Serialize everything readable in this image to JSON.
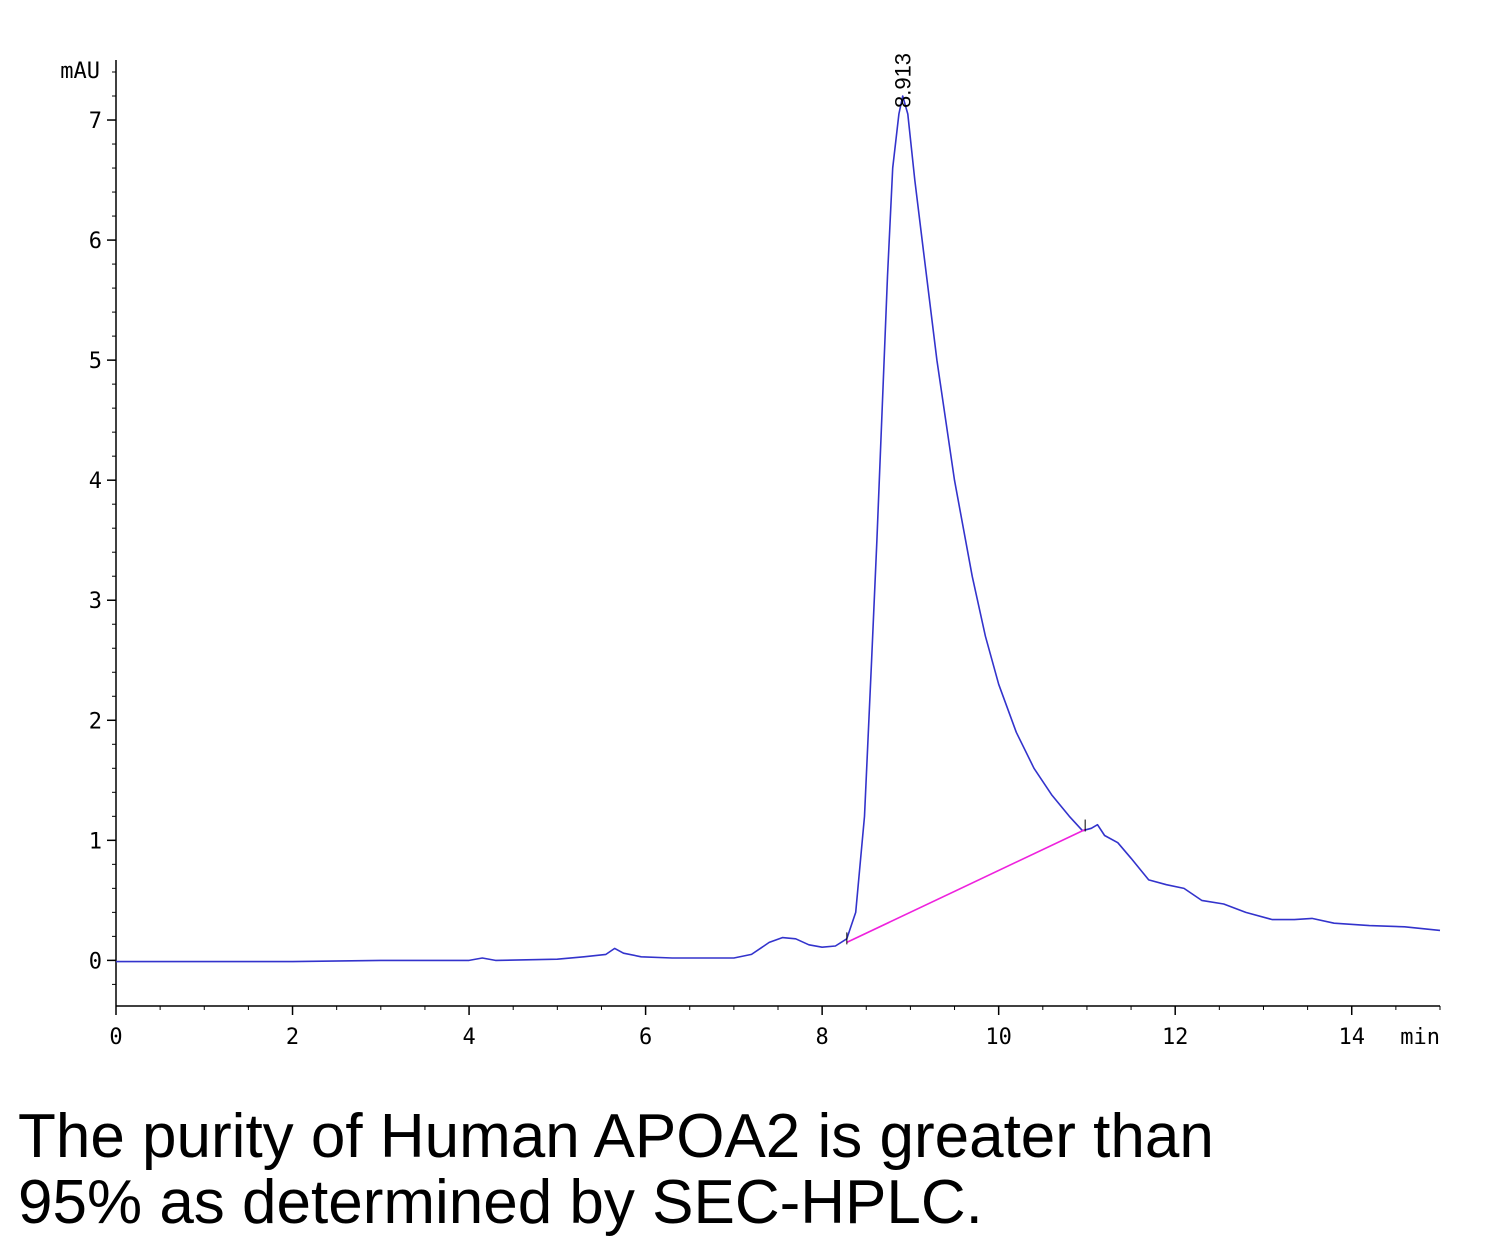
{
  "chart_data": {
    "type": "line",
    "ylabel": "mAU",
    "xlabel": "min",
    "xlim": [
      0,
      15
    ],
    "ylim": [
      -0.38,
      7.5
    ],
    "x_ticks": [
      0,
      2,
      4,
      6,
      8,
      10,
      12,
      14
    ],
    "y_ticks": [
      0,
      1,
      2,
      3,
      4,
      5,
      6,
      7
    ],
    "peak_label": "8.913",
    "peak": {
      "x": 8.913,
      "y": 7.2
    },
    "series": [
      {
        "color": "#3333cc",
        "points": [
          [
            0,
            -0.01
          ],
          [
            1,
            -0.01
          ],
          [
            2,
            -0.01
          ],
          [
            3,
            0.0
          ],
          [
            4,
            0.0
          ],
          [
            4.15,
            0.02
          ],
          [
            4.3,
            0.0
          ],
          [
            5,
            0.01
          ],
          [
            5.3,
            0.03
          ],
          [
            5.55,
            0.05
          ],
          [
            5.65,
            0.1
          ],
          [
            5.75,
            0.06
          ],
          [
            5.95,
            0.03
          ],
          [
            6.3,
            0.02
          ],
          [
            7.0,
            0.02
          ],
          [
            7.2,
            0.05
          ],
          [
            7.4,
            0.15
          ],
          [
            7.55,
            0.19
          ],
          [
            7.7,
            0.18
          ],
          [
            7.85,
            0.13
          ],
          [
            8.0,
            0.11
          ],
          [
            8.15,
            0.12
          ],
          [
            8.28,
            0.18
          ],
          [
            8.38,
            0.4
          ],
          [
            8.48,
            1.2
          ],
          [
            8.56,
            2.5
          ],
          [
            8.62,
            3.5
          ],
          [
            8.68,
            4.6
          ],
          [
            8.74,
            5.7
          ],
          [
            8.8,
            6.6
          ],
          [
            8.87,
            7.05
          ],
          [
            8.913,
            7.2
          ],
          [
            8.97,
            7.05
          ],
          [
            9.05,
            6.5
          ],
          [
            9.15,
            5.9
          ],
          [
            9.3,
            5.0
          ],
          [
            9.5,
            4.0
          ],
          [
            9.7,
            3.2
          ],
          [
            9.85,
            2.7
          ],
          [
            10.0,
            2.3
          ],
          [
            10.2,
            1.9
          ],
          [
            10.4,
            1.6
          ],
          [
            10.6,
            1.38
          ],
          [
            10.8,
            1.2
          ],
          [
            10.95,
            1.08
          ],
          [
            11.05,
            1.1
          ],
          [
            11.12,
            1.13
          ],
          [
            11.2,
            1.04
          ],
          [
            11.35,
            0.98
          ],
          [
            11.5,
            0.85
          ],
          [
            11.7,
            0.67
          ],
          [
            11.9,
            0.63
          ],
          [
            12.1,
            0.6
          ],
          [
            12.3,
            0.5
          ],
          [
            12.55,
            0.47
          ],
          [
            12.8,
            0.4
          ],
          [
            13.1,
            0.34
          ],
          [
            13.35,
            0.34
          ],
          [
            13.55,
            0.35
          ],
          [
            13.8,
            0.31
          ],
          [
            14.2,
            0.29
          ],
          [
            14.6,
            0.28
          ],
          [
            15.0,
            0.25
          ]
        ]
      },
      {
        "color": "#ee22dd",
        "points": [
          [
            8.28,
            0.15
          ],
          [
            10.98,
            1.09
          ]
        ]
      }
    ]
  },
  "caption": {
    "line1": "The purity of Human APOA2 is greater than",
    "line2": "95% as determined by SEC-HPLC."
  }
}
